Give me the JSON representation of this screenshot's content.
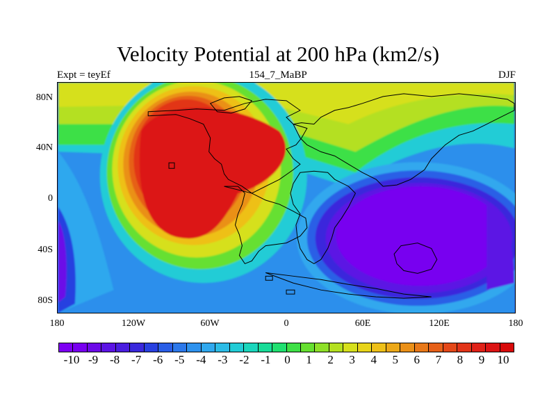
{
  "title": "Velocity Potential at 200 hPa (km2/s)",
  "subtitle_left": "Expt = teyEf",
  "subtitle_center": "154_7_MaBP",
  "subtitle_right": "DJF",
  "lat_ticks": [
    "80N",
    "40N",
    "0",
    "40S",
    "80S"
  ],
  "lon_ticks": [
    "180",
    "120W",
    "60W",
    "0",
    "60E",
    "120E",
    "180"
  ],
  "colorbar_labels": [
    "-10",
    "-9",
    "-8",
    "-7",
    "-6",
    "-5",
    "-4",
    "-3",
    "-2",
    "-1",
    "0",
    "1",
    "2",
    "3",
    "4",
    "5",
    "6",
    "7",
    "8",
    "9",
    "10"
  ],
  "colors": {
    "palette": [
      "#7d00f2",
      "#7800f0",
      "#6c0ae8",
      "#5c14e4",
      "#4a1ee0",
      "#3a28dc",
      "#2840e0",
      "#2a5ee6",
      "#2c78ea",
      "#2e92ee",
      "#30a8ee",
      "#2cbce6",
      "#22ccd6",
      "#1ad6bc",
      "#18dc98",
      "#20e070",
      "#3ee046",
      "#66e030",
      "#8ee028",
      "#b4e020",
      "#d6e01c",
      "#e8d41a",
      "#eec018",
      "#eca818",
      "#ea9018",
      "#e87818",
      "#e66018",
      "#e44818",
      "#e23418",
      "#e02218",
      "#dc1414",
      "#d80a0a"
    ]
  }
}
